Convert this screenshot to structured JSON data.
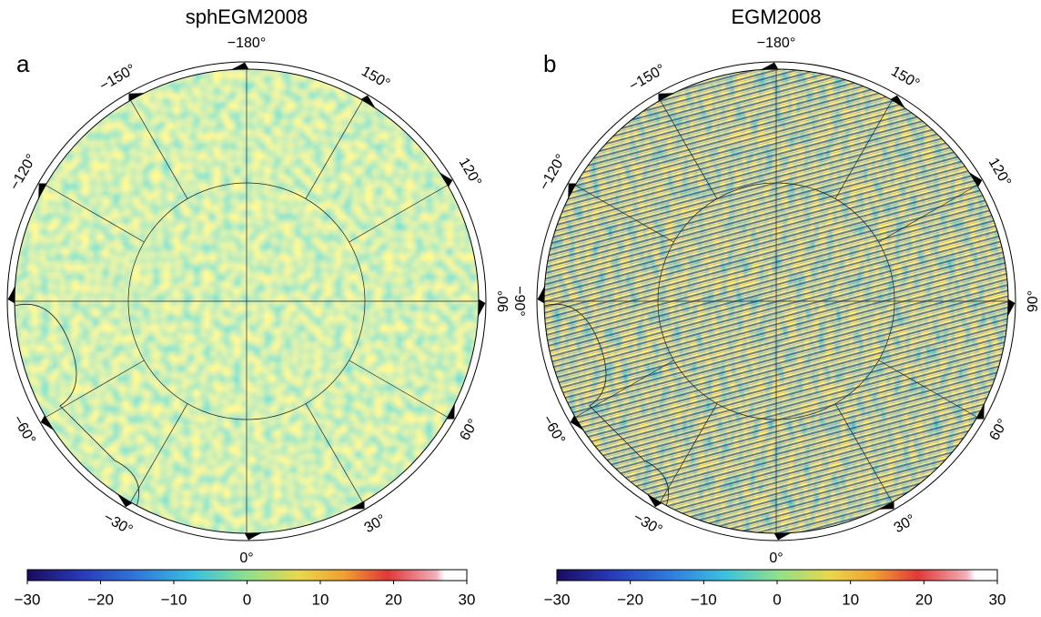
{
  "panels": [
    {
      "letter": "a",
      "title": "sphEGM2008",
      "lon_labels": [
        "−180°",
        "150°",
        "120°",
        "90°",
        "60°",
        "30°",
        "0°",
        "−30°",
        "−60°",
        "−90°",
        "−120°",
        "−150°"
      ],
      "colorbar": {
        "lim": [
          -30,
          30
        ],
        "ticks": [
          {
            "value": -30,
            "label": "−30"
          },
          {
            "value": -20,
            "label": "−20"
          },
          {
            "value": -10,
            "label": "−10"
          },
          0,
          10,
          20,
          30
        ]
      }
    },
    {
      "letter": "b",
      "title": "EGM2008",
      "lon_labels": [
        "−180°",
        "150°",
        "120°",
        "90°",
        "60°",
        "30°",
        "0°",
        "−30°",
        "−60°",
        "−90°",
        "−120°",
        "−150°"
      ],
      "colorbar": {
        "lim": [
          -30,
          30
        ],
        "ticks": [
          {
            "value": -30,
            "label": "−30"
          },
          {
            "value": -20,
            "label": "−20"
          },
          {
            "value": -10,
            "label": "−10"
          },
          0,
          10,
          20,
          30
        ]
      }
    }
  ]
}
